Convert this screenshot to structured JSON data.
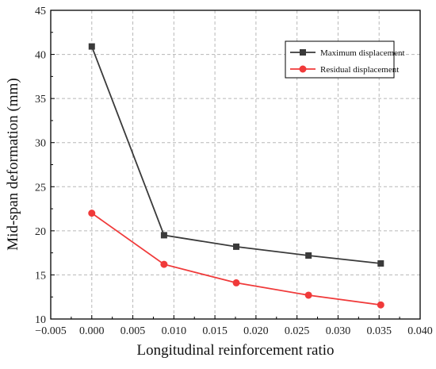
{
  "chart_data": {
    "type": "line",
    "xlabel": "Longitudinal reinforcement ratio",
    "ylabel": "Mid-span deformation (mm)",
    "xlim": [
      -0.005,
      0.04
    ],
    "ylim": [
      10,
      45
    ],
    "xticks": [
      -0.005,
      0.0,
      0.005,
      0.01,
      0.015,
      0.02,
      0.025,
      0.03,
      0.035,
      0.04
    ],
    "xtick_labels": [
      "−0.005",
      "0.000",
      "0.005",
      "0.010",
      "0.015",
      "0.020",
      "0.025",
      "0.030",
      "0.035",
      "0.040"
    ],
    "yticks": [
      10,
      15,
      20,
      25,
      30,
      35,
      40,
      45
    ],
    "ytick_labels": [
      "10",
      "15",
      "20",
      "25",
      "30",
      "35",
      "40",
      "45"
    ],
    "grid": true,
    "legend_position": "top-right",
    "series": [
      {
        "name": "Maximum displacement",
        "color": "#3a3a3a",
        "marker": "square",
        "x": [
          0.0,
          0.0088,
          0.0176,
          0.0264,
          0.0352
        ],
        "y": [
          40.9,
          19.5,
          18.2,
          17.2,
          16.3
        ]
      },
      {
        "name": "Residual displacement",
        "color": "#f03a3a",
        "marker": "circle",
        "x": [
          0.0,
          0.0088,
          0.0176,
          0.0264,
          0.0352
        ],
        "y": [
          22.0,
          16.2,
          14.1,
          12.7,
          11.6
        ]
      }
    ]
  }
}
